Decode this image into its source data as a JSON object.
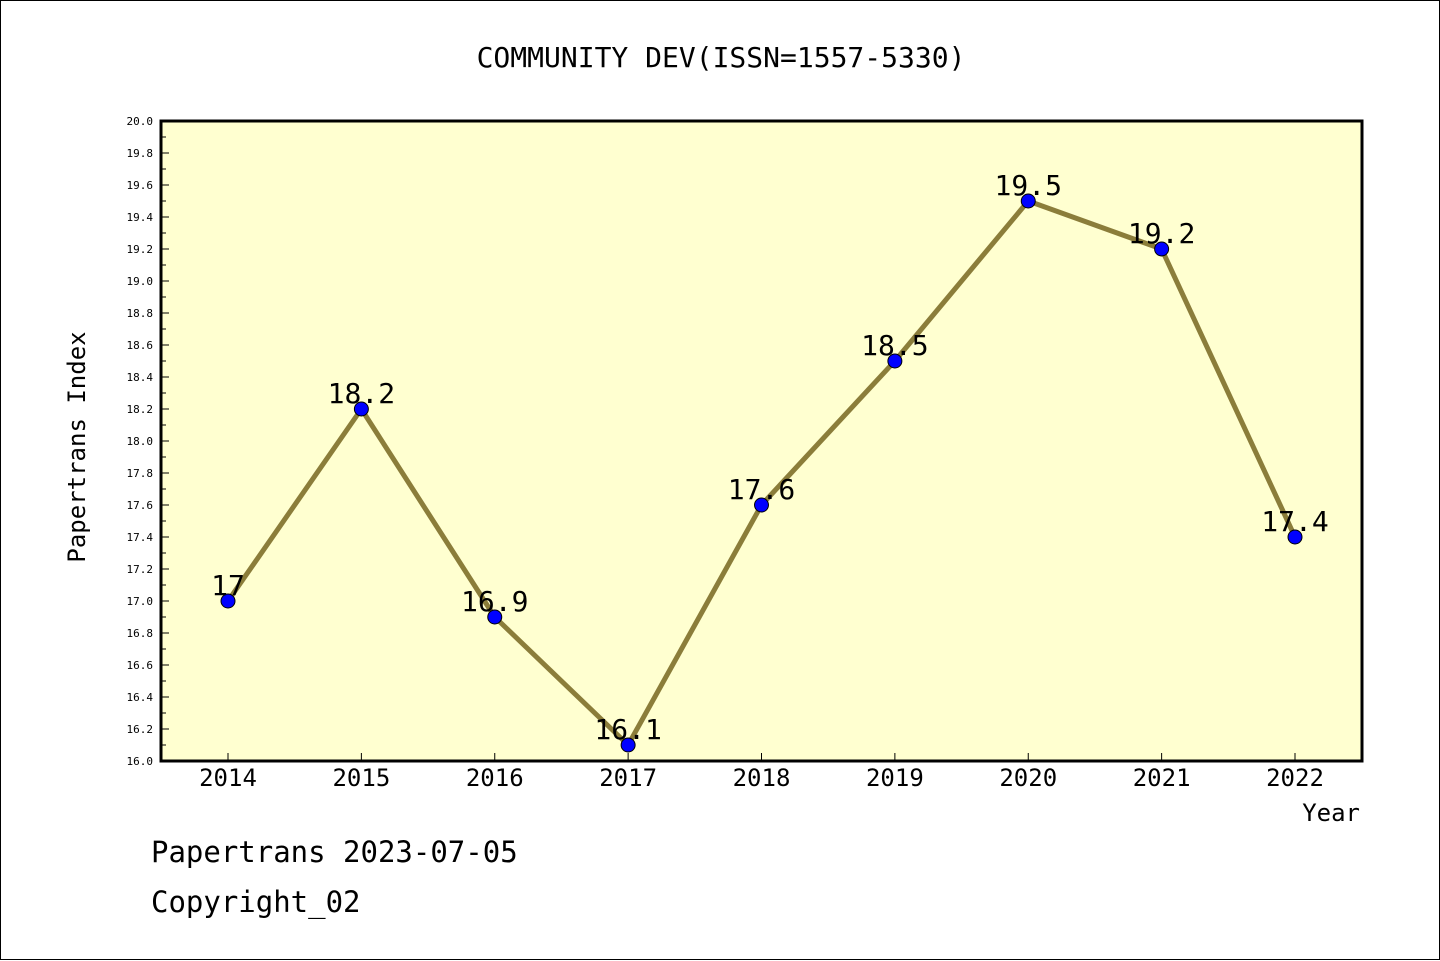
{
  "chart_data": {
    "type": "line",
    "title": "COMMUNITY DEV(ISSN=1557-5330)",
    "xlabel": "Year",
    "ylabel": "Papertrans Index",
    "categories": [
      "2014",
      "2015",
      "2016",
      "2017",
      "2018",
      "2019",
      "2020",
      "2021",
      "2022"
    ],
    "series": [
      {
        "values": [
          17,
          18.2,
          16.9,
          16.1,
          17.6,
          18.5,
          19.5,
          19.2,
          17.4
        ],
        "labels": [
          "17",
          "18.2",
          "16.9",
          "16.1",
          "17.6",
          "18.5",
          "19.5",
          "19.2",
          "17.4"
        ]
      }
    ],
    "ylim": [
      16.0,
      20.0
    ],
    "yticks": [
      "16.0",
      "16.2",
      "16.4",
      "16.6",
      "16.8",
      "17.0",
      "17.2",
      "17.4",
      "17.6",
      "17.8",
      "18.0",
      "18.2",
      "18.4",
      "18.6",
      "18.8",
      "19.0",
      "19.2",
      "19.4",
      "19.6",
      "19.8",
      "20.0"
    ],
    "grid": false,
    "colors": {
      "plot_background": "#ffffd0",
      "line": "#8b7d3a",
      "marker": "#0000ff"
    }
  },
  "footer": {
    "line1": "Papertrans 2023-07-05",
    "line2": "Copyright_02"
  }
}
